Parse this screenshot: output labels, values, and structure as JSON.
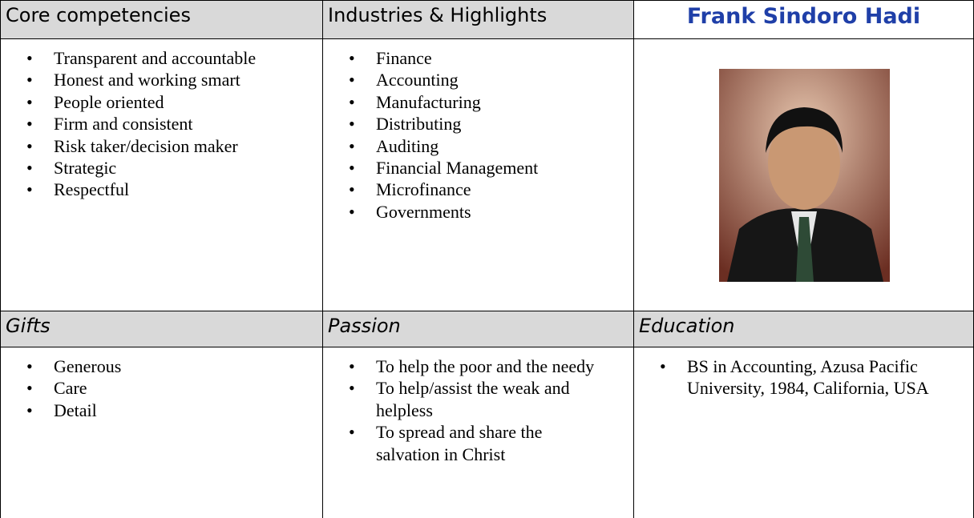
{
  "top": [
    {
      "title": "Core competencies",
      "items": [
        "Transparent and accountable",
        "Honest and working smart",
        "People oriented",
        "Firm and consistent",
        "Risk taker/decision maker",
        "Strategic",
        "Respectful"
      ]
    },
    {
      "title": "Industries & Highlights",
      "items": [
        "Finance",
        "Accounting",
        "Manufacturing",
        "Distributing",
        "Auditing",
        "Financial Management",
        "Microfinance",
        "Governments"
      ]
    }
  ],
  "profile": {
    "name": "Frank Sindoro Hadi"
  },
  "bottom": [
    {
      "title": "Gifts",
      "items": [
        "Generous",
        "Care",
        "Detail"
      ]
    },
    {
      "title": "Passion",
      "items": [
        "To help the poor and the needy",
        "To help/assist the weak and helpless",
        "To spread and share the salvation in Christ"
      ]
    },
    {
      "title": "Education",
      "items": [
        "BS in Accounting, Azusa Pacific University, 1984, California, USA"
      ]
    }
  ]
}
